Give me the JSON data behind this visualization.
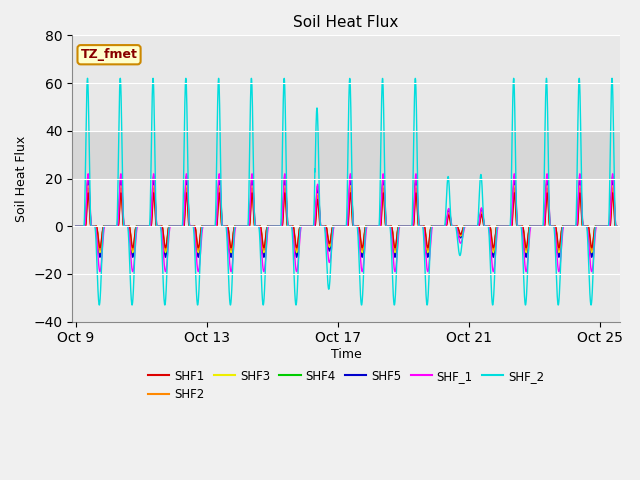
{
  "title": "Soil Heat Flux",
  "xlabel": "Time",
  "ylabel": "Soil Heat Flux",
  "ylim": [
    -40,
    80
  ],
  "yticks": [
    -40,
    -20,
    0,
    20,
    40,
    60,
    80
  ],
  "x_tick_labels": [
    "Oct 9",
    "Oct 13",
    "Oct 17",
    "Oct 21",
    "Oct 25"
  ],
  "x_tick_positions": [
    0,
    4,
    8,
    12,
    16
  ],
  "series_colors": {
    "SHF1": "#dd0000",
    "SHF2": "#ff8800",
    "SHF3": "#eeee00",
    "SHF4": "#00cc00",
    "SHF5": "#0000cc",
    "SHF_1": "#ff00ff",
    "SHF_2": "#00dddd"
  },
  "legend_label": "TZ_fmet",
  "legend_box_facecolor": "#ffffcc",
  "legend_box_edgecolor": "#cc8800",
  "legend_text_color": "#880000",
  "shaded_region_color": "#d0d0d0",
  "fig_facecolor": "#f0f0f0",
  "ax_facecolor": "#e8e8e8",
  "grid_color": "#ffffff",
  "spine_color": "#888888"
}
